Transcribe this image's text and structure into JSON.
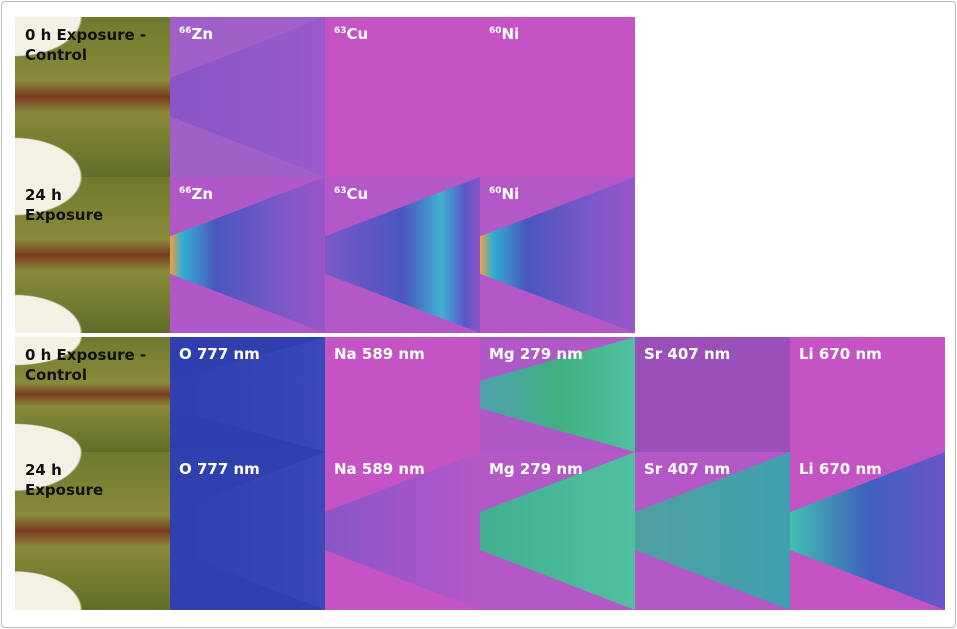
{
  "figure": {
    "top_rows": [
      {
        "label": "0 h Exposure - Control",
        "panels": [
          {
            "isotope": "66",
            "symbol": "Zn"
          },
          {
            "isotope": "63",
            "symbol": "Cu"
          },
          {
            "isotope": "60",
            "symbol": "Ni"
          }
        ]
      },
      {
        "label": "24 h Exposure",
        "panels": [
          {
            "isotope": "66",
            "symbol": "Zn"
          },
          {
            "isotope": "63",
            "symbol": "Cu"
          },
          {
            "isotope": "60",
            "symbol": "Ni"
          }
        ]
      }
    ],
    "bottom_rows": [
      {
        "label": "0 h Exposure - Control",
        "panels": [
          "O 777 nm",
          "Na 589 nm",
          "Mg 279 nm",
          "Sr 407 nm",
          "Li 670 nm"
        ]
      },
      {
        "label": "24 h Exposure",
        "panels": [
          "O 777 nm",
          "Na 589 nm",
          "Mg 279 nm",
          "Sr 407 nm",
          "Li 670 nm"
        ]
      }
    ]
  }
}
